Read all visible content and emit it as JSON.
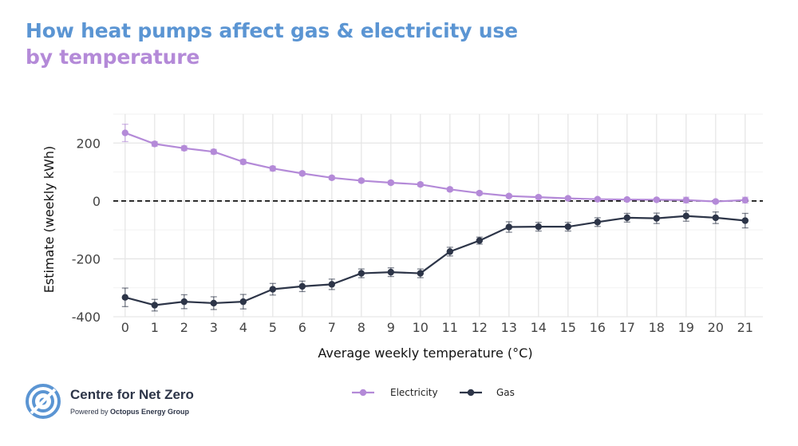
{
  "title": {
    "line1": "How heat pumps affect gas & electricity use",
    "line2": "by temperature"
  },
  "brand": {
    "name": "Centre for Net Zero",
    "powered_prefix": "Powered by ",
    "powered_name": "Octopus Energy Group",
    "logo_icon": "target-circle-logo-icon",
    "color": "#5b95d3"
  },
  "chart_data": {
    "type": "line",
    "xlabel": "Average weekly temperature (°C)",
    "ylabel": "Estimate (weekly kWh)",
    "x": [
      0,
      1,
      2,
      3,
      4,
      5,
      6,
      7,
      8,
      9,
      10,
      11,
      12,
      13,
      14,
      15,
      16,
      17,
      18,
      19,
      20,
      21
    ],
    "xticks": [
      "0",
      "1",
      "2",
      "3",
      "4",
      "5",
      "6",
      "7",
      "8",
      "9",
      "10",
      "11",
      "12",
      "13",
      "14",
      "15",
      "16",
      "17",
      "18",
      "19",
      "20",
      "21"
    ],
    "yticks": [
      200,
      0,
      -200,
      -400
    ],
    "ytick_labels": [
      "200",
      "0",
      "-200",
      "-400"
    ],
    "ylim": [
      -400,
      300
    ],
    "xlim": [
      -0.4,
      21.6
    ],
    "grid": true,
    "reference_line": {
      "y": 0,
      "style": "dashed"
    },
    "legend_position": "bottom-center",
    "series": [
      {
        "name": "Electricity",
        "color": "#b48ad8",
        "values": [
          235,
          197,
          182,
          170,
          135,
          112,
          95,
          80,
          70,
          63,
          57,
          40,
          27,
          17,
          13,
          9,
          6,
          5,
          4,
          3,
          -2,
          3
        ],
        "error": [
          30,
          8,
          8,
          8,
          8,
          8,
          6,
          6,
          6,
          6,
          6,
          6,
          6,
          5,
          5,
          5,
          5,
          5,
          5,
          10,
          5,
          10
        ]
      },
      {
        "name": "Gas",
        "color": "#2d3548",
        "values": [
          -333,
          -360,
          -348,
          -353,
          -348,
          -305,
          -295,
          -288,
          -250,
          -246,
          -250,
          -175,
          -137,
          -90,
          -89,
          -89,
          -73,
          -58,
          -60,
          -52,
          -58,
          -68
        ],
        "error": [
          32,
          20,
          24,
          22,
          25,
          20,
          18,
          18,
          15,
          15,
          15,
          15,
          12,
          18,
          15,
          15,
          15,
          15,
          18,
          18,
          20,
          25
        ]
      }
    ]
  }
}
